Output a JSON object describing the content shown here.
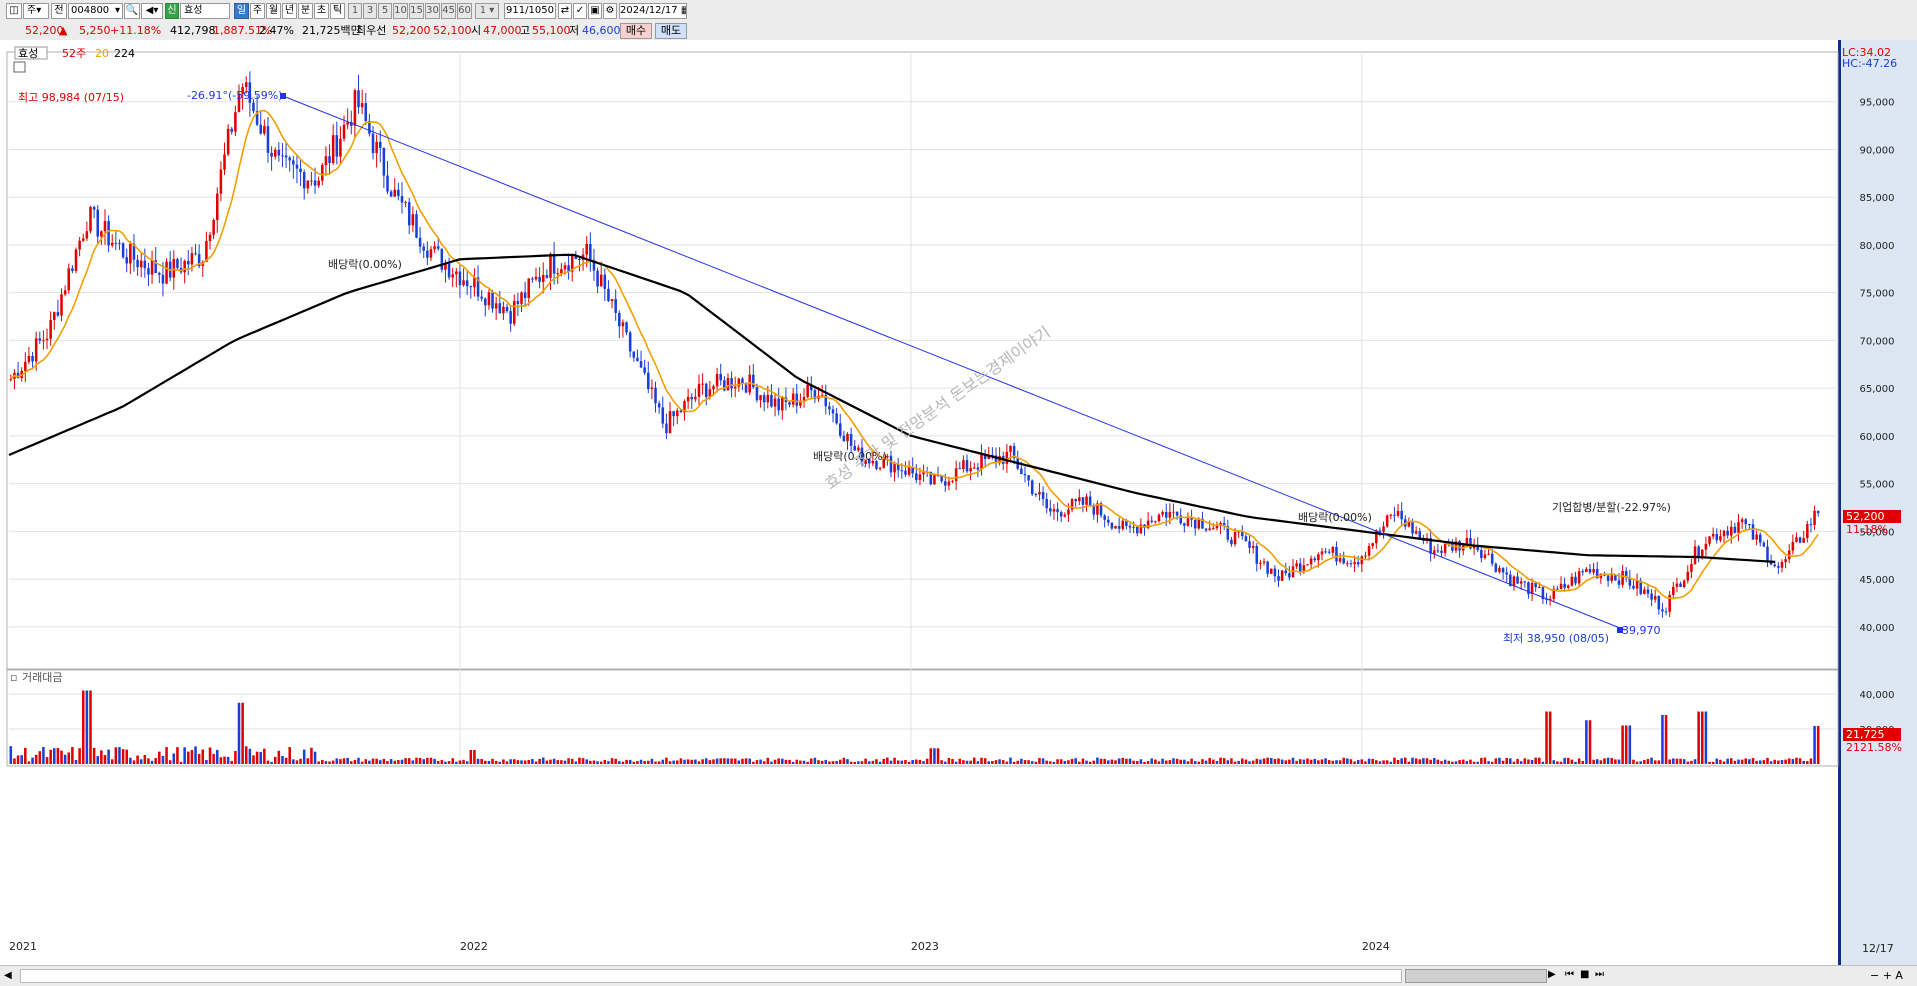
{
  "toolbar": {
    "period_code": "주",
    "prev_label": "전",
    "stock_code": "004800",
    "credit_label": "신",
    "stock_name": "효성",
    "period_buttons": [
      "일",
      "주",
      "월",
      "년",
      "분",
      "초",
      "틱"
    ],
    "minute_buttons": [
      "1",
      "3",
      "5",
      "10",
      "15",
      "30",
      "45",
      "60"
    ],
    "unit_value": "1",
    "count_value": "911",
    "count_total": "/1050",
    "date_value": "2024/12/17"
  },
  "quote": {
    "price": "52,200",
    "change": "5,250",
    "change_pct": "+11.18%",
    "volume": "412,798",
    "volume_pct": "1,887.51%",
    "turnover": "2.47%",
    "amount": "21,725백만",
    "best_ask_label": "최우선",
    "best_ask": "52,200",
    "best_bid": "52,100",
    "open_label": "시",
    "open": "47,000",
    "high_label": "고",
    "high": "55,100",
    "low_label": "저",
    "low": "46,600",
    "buy_label": "매수",
    "sell_label": "매도"
  },
  "legend": {
    "name": "효성",
    "ma_week": "52주",
    "ma_20": "20",
    "ma_224": "224"
  },
  "colors": {
    "up": "#e00000",
    "down": "#1a3fd8",
    "ma20": "#f0a000",
    "ma224": "#000000",
    "trend": "#2233ee",
    "axis_bg": "#dde6f3"
  },
  "annotations": {
    "high": "최고 98,984 (07/15)",
    "low": "최저 38,950 (08/05)",
    "trend_pct": "-26.91°(-59.59%)",
    "trend_end": "39,970",
    "div1": "배당락(0.00%)",
    "div2": "배당락(0.00%)",
    "div3": "배당락(0.00%)",
    "merger": "기업합병/분할(-22.97%)",
    "lc": "LC:34.02",
    "hc": "HC:-47.26",
    "watermark": "효성 주가 및 전망분석 돈보는경제이야기",
    "price_tag": "52,200",
    "price_tag_pct": "11.18%",
    "vol_tag": "21,725",
    "vol_tag_pct": "2121.58%",
    "vol_label": "거래대금",
    "end_date": "12/17"
  },
  "chart_data": [
    {
      "type": "candlestick",
      "title": "효성",
      "y_ticks": [
        40000,
        45000,
        50000,
        55000,
        60000,
        65000,
        70000,
        75000,
        80000,
        85000,
        90000,
        95000
      ],
      "y_tick_labels": [
        "40,000",
        "45,000",
        "50,000",
        "55,000",
        "60,000",
        "65,000",
        "70,000",
        "75,000",
        "80,000",
        "85,000",
        "90,000",
        "95,000"
      ],
      "ylim": [
        36000,
        100000
      ],
      "x_labels": [
        "2021",
        "2022",
        "2023",
        "2024"
      ],
      "close_path": [
        [
          "2021-01",
          66000
        ],
        [
          "2021-02",
          71000
        ],
        [
          "2021-03",
          83000
        ],
        [
          "2021-04",
          79000
        ],
        [
          "2021-05",
          77000
        ],
        [
          "2021-06",
          79000
        ],
        [
          "2021-07",
          97000
        ],
        [
          "2021-08",
          88000
        ],
        [
          "2021-09",
          87000
        ],
        [
          "2021-10",
          95000
        ],
        [
          "2021-11",
          85000
        ],
        [
          "2021-12",
          79000
        ],
        [
          "2022-01",
          76000
        ],
        [
          "2022-02",
          73000
        ],
        [
          "2022-03",
          78000
        ],
        [
          "2022-04",
          79000
        ],
        [
          "2022-05",
          70000
        ],
        [
          "2022-06",
          61000
        ],
        [
          "2022-07",
          65000
        ],
        [
          "2022-08",
          66000
        ],
        [
          "2022-09",
          63000
        ],
        [
          "2022-10",
          65000
        ],
        [
          "2022-11",
          58000
        ],
        [
          "2022-12",
          57000
        ],
        [
          "2023-01",
          55000
        ],
        [
          "2023-02",
          57000
        ],
        [
          "2023-03",
          58000
        ],
        [
          "2023-04",
          52000
        ],
        [
          "2023-05",
          53000
        ],
        [
          "2023-06",
          50000
        ],
        [
          "2023-07",
          52000
        ],
        [
          "2023-08",
          51000
        ],
        [
          "2023-09",
          49000
        ],
        [
          "2023-10",
          45000
        ],
        [
          "2023-11",
          48000
        ],
        [
          "2023-12",
          47000
        ],
        [
          "2024-01",
          52000
        ],
        [
          "2024-02",
          48000
        ],
        [
          "2024-03",
          49000
        ],
        [
          "2024-04",
          45000
        ],
        [
          "2024-05",
          43000
        ],
        [
          "2024-06",
          46000
        ],
        [
          "2024-07",
          45000
        ],
        [
          "2024-08",
          42000
        ],
        [
          "2024-09",
          49000
        ],
        [
          "2024-10",
          51000
        ],
        [
          "2024-11",
          46000
        ],
        [
          "2024-12",
          52200
        ]
      ],
      "ma224_path": [
        [
          "2021-01",
          58000
        ],
        [
          "2021-04",
          63000
        ],
        [
          "2021-07",
          70000
        ],
        [
          "2021-10",
          75000
        ],
        [
          "2022-01",
          78500
        ],
        [
          "2022-04",
          79000
        ],
        [
          "2022-07",
          75000
        ],
        [
          "2022-10",
          66000
        ],
        [
          "2023-01",
          60000
        ],
        [
          "2023-04",
          57000
        ],
        [
          "2023-07",
          54000
        ],
        [
          "2023-10",
          51500
        ],
        [
          "2024-01",
          50000
        ],
        [
          "2024-04",
          48500
        ],
        [
          "2024-07",
          47500
        ],
        [
          "2024-10",
          47300
        ],
        [
          "2024-12",
          46800
        ]
      ]
    },
    {
      "type": "bar",
      "title": "거래대금",
      "y_ticks": [
        20000,
        40000
      ],
      "y_tick_labels": [
        "20,000",
        "40,000"
      ],
      "ylim": [
        0,
        48000
      ],
      "spikes": [
        [
          "2021-03",
          42000
        ],
        [
          "2021-07",
          35000
        ],
        [
          "2022-01",
          8000
        ],
        [
          "2023-01",
          9000
        ],
        [
          "2024-05",
          30000
        ],
        [
          "2024-06",
          25000
        ],
        [
          "2024-07",
          22000
        ],
        [
          "2024-08",
          28000
        ],
        [
          "2024-09",
          30000
        ],
        [
          "2024-12",
          21725
        ]
      ]
    }
  ]
}
